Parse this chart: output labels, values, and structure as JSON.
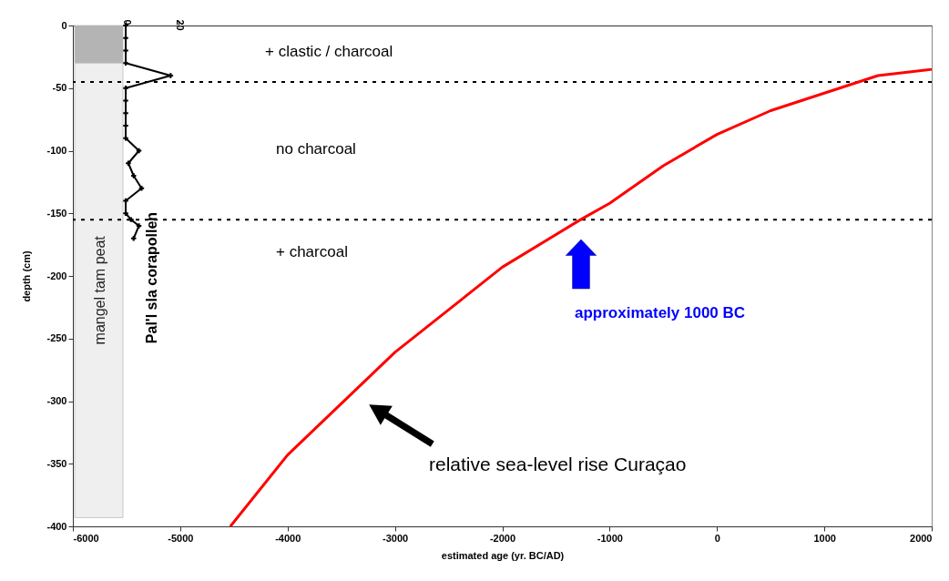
{
  "chart_data": {
    "type": "line",
    "xlabel": "estimated age (yr. BC/AD)",
    "ylabel": "depth (cm)",
    "xlim": [
      -6000,
      2000
    ],
    "xticks": [
      -6000,
      -5000,
      -4000,
      -3000,
      -2000,
      -1000,
      0,
      1000,
      2000
    ],
    "ylim": [
      -400,
      0
    ],
    "yticks": [
      -400,
      -350,
      -300,
      -250,
      -200,
      -150,
      -100,
      -50,
      0
    ],
    "x2lim": [
      -20,
      305
    ],
    "x2ticks": [
      0,
      20
    ],
    "series": [
      {
        "color": "#ff0000",
        "x": [
          -4533,
          -4000,
          -3000,
          -2000,
          -1270,
          -1000,
          -500,
          0,
          500,
          1000,
          1500,
          2000
        ],
        "values": [
          -400,
          -343,
          -261,
          -193,
          -155,
          -142,
          -112,
          -87,
          -68,
          -54,
          -40,
          -35
        ]
      },
      {
        "name": "Pal'l sla corapollen",
        "axis": "x2",
        "color": "#000000",
        "marker": "cross",
        "x": [
          0,
          0,
          0,
          0,
          17,
          0,
          0,
          0,
          0,
          0,
          5,
          1,
          3,
          6,
          0,
          0,
          2,
          5,
          3
        ],
        "values": [
          0,
          -10,
          -20,
          -30,
          -40,
          -50,
          -60,
          -70,
          -80,
          -90,
          -100,
          -110,
          -120,
          -130,
          -140,
          -150,
          -155,
          -160,
          -170
        ]
      }
    ],
    "ref_lines": [
      {
        "axis": "y",
        "value": -45,
        "color": "#000000",
        "line_style": "dashed"
      },
      {
        "axis": "y",
        "value": -155,
        "color": "#000000",
        "line_style": "dashed"
      }
    ],
    "bands": [
      {
        "axis": "y",
        "from": 0,
        "to": -30,
        "color": "#b4b4b4"
      },
      {
        "axis": "y",
        "from": -30,
        "to": -393,
        "color": "#efefef",
        "label": "mangel tam peat"
      }
    ],
    "annotations": [
      "+ clastic / charcoal",
      "no charcoal",
      "+ charcoal",
      "approximately 1000 BC",
      "relative sea-level rise Curaçao"
    ],
    "grid": false
  }
}
